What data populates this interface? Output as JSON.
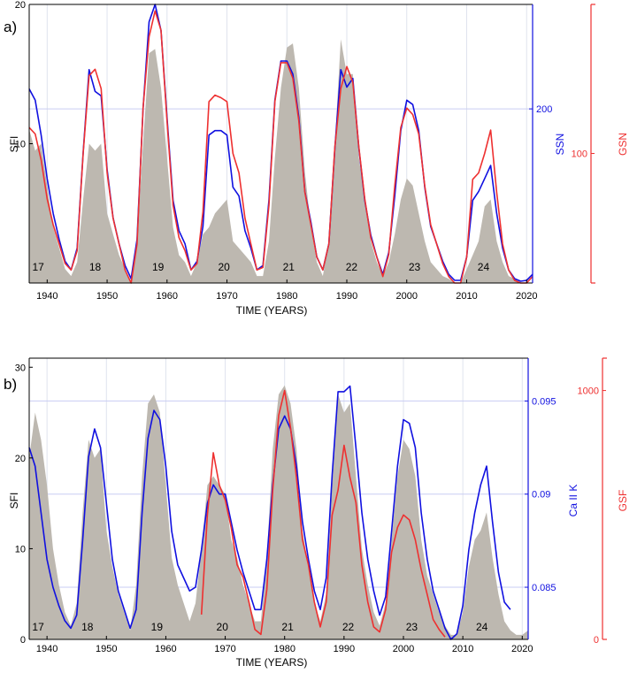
{
  "chart_data": [
    {
      "panel": "a)",
      "type": "line",
      "xlabel": "TIME (YEARS)",
      "ylabel": "SFI",
      "y2label": "SSN",
      "y3label": "GSN",
      "xlim": [
        1937,
        2021
      ],
      "ylim": [
        0,
        20
      ],
      "y2lim": [
        0,
        320
      ],
      "y3lim": [
        0,
        215
      ],
      "xticks": [
        "1940",
        "1950",
        "1960",
        "1970",
        "1980",
        "1990",
        "2000",
        "2010",
        "2020"
      ],
      "yticks": [
        "10",
        "20"
      ],
      "y2ticks": [
        "200"
      ],
      "y3ticks": [
        "100"
      ],
      "grid": true,
      "colors": {
        "SFI": "#bdb8b0",
        "SSN": "#1010e0",
        "GSN": "#ee3030"
      },
      "cycle_labels": [
        {
          "label": "17",
          "x": 1938.5
        },
        {
          "label": "18",
          "x": 1948
        },
        {
          "label": "19",
          "x": 1958.5
        },
        {
          "label": "20",
          "x": 1969.5
        },
        {
          "label": "21",
          "x": 1980.3
        },
        {
          "label": "22",
          "x": 1990.8
        },
        {
          "label": "23",
          "x": 2001.3
        },
        {
          "label": "24",
          "x": 2012.8
        }
      ],
      "series": [
        {
          "series_key": "SFI",
          "kind": "area",
          "x": [
            1937,
            1938,
            1939,
            1940,
            1941,
            1942,
            1943,
            1944,
            1945,
            1946,
            1947,
            1948,
            1949,
            1950,
            1951,
            1952,
            1953,
            1954,
            1955,
            1956,
            1957,
            1958,
            1959,
            1960,
            1961,
            1962,
            1963,
            1964,
            1965,
            1966,
            1967,
            1968,
            1969,
            1970,
            1971,
            1972,
            1973,
            1974,
            1975,
            1976,
            1977,
            1978,
            1979,
            1980,
            1981,
            1982,
            1983,
            1984,
            1985,
            1986,
            1987,
            1988,
            1989,
            1990,
            1991,
            1992,
            1993,
            1994,
            1995,
            1996,
            1997,
            1998,
            1999,
            2000,
            2001,
            2002,
            2003,
            2004,
            2005,
            2006,
            2007,
            2008,
            2009,
            2010,
            2011,
            2012,
            2013,
            2014,
            2015,
            2016,
            2017,
            2018,
            2019,
            2020,
            2021
          ],
          "values": [
            11,
            9.5,
            10,
            7,
            4,
            2.5,
            1,
            0.5,
            1.5,
            6,
            10,
            9.5,
            10,
            5,
            3.5,
            2,
            1,
            0,
            3,
            10,
            16.5,
            16.8,
            14,
            9,
            4,
            2,
            1.5,
            0.5,
            1.5,
            3.5,
            4,
            5,
            5.5,
            6,
            3,
            2.5,
            2,
            1.5,
            0.5,
            0.5,
            3,
            9,
            14,
            16.9,
            17.2,
            14,
            8,
            4,
            1.5,
            0.5,
            3,
            10,
            17.5,
            15,
            15,
            9,
            6,
            3,
            1.5,
            0.5,
            1.5,
            3.5,
            6,
            7.5,
            7,
            5,
            3,
            1.5,
            1,
            0.5,
            0.3,
            0,
            0,
            1,
            2,
            3,
            5.5,
            6,
            3,
            1.5,
            0.5,
            0.3,
            0,
            0,
            0
          ]
        },
        {
          "name": "SSN",
          "series_key": "SSN",
          "kind": "line",
          "x": [
            1937,
            1938,
            1939,
            1940,
            1941,
            1942,
            1943,
            1944,
            1945,
            1946,
            1947,
            1948,
            1949,
            1950,
            1951,
            1952,
            1953,
            1954,
            1955,
            1956,
            1957,
            1958,
            1959,
            1960,
            1961,
            1962,
            1963,
            1964,
            1965,
            1966,
            1967,
            1968,
            1969,
            1970,
            1971,
            1972,
            1973,
            1974,
            1975,
            1976,
            1977,
            1978,
            1979,
            1980,
            1981,
            1982,
            1983,
            1984,
            1985,
            1986,
            1987,
            1988,
            1989,
            1990,
            1991,
            1992,
            1993,
            1994,
            1995,
            1996,
            1997,
            1998,
            1999,
            2000,
            2001,
            2002,
            2003,
            2004,
            2005,
            2006,
            2007,
            2008,
            2009,
            2010,
            2011,
            2012,
            2013,
            2014,
            2015,
            2016,
            2017,
            2018,
            2019,
            2020,
            2021
          ],
          "values": [
            223,
            210,
            170,
            120,
            80,
            50,
            25,
            15,
            40,
            150,
            245,
            220,
            215,
            130,
            75,
            45,
            20,
            5,
            50,
            200,
            300,
            320,
            290,
            190,
            95,
            60,
            45,
            15,
            25,
            65,
            170,
            175,
            175,
            170,
            110,
            100,
            60,
            40,
            15,
            20,
            95,
            210,
            255,
            255,
            240,
            190,
            105,
            70,
            30,
            15,
            45,
            155,
            245,
            225,
            235,
            155,
            95,
            55,
            30,
            10,
            35,
            100,
            175,
            210,
            205,
            175,
            110,
            65,
            45,
            25,
            10,
            3,
            3,
            30,
            95,
            105,
            120,
            135,
            80,
            40,
            15,
            5,
            2,
            3,
            10
          ]
        },
        {
          "name": "GSN",
          "series_key": "GSN",
          "kind": "line",
          "x": [
            1937,
            1938,
            1939,
            1940,
            1941,
            1942,
            1943,
            1944,
            1945,
            1946,
            1947,
            1948,
            1949,
            1950,
            1951,
            1952,
            1953,
            1954,
            1955,
            1956,
            1957,
            1958,
            1959,
            1960,
            1961,
            1962,
            1963,
            1964,
            1965,
            1966,
            1967,
            1968,
            1969,
            1970,
            1971,
            1972,
            1973,
            1974,
            1975,
            1976,
            1977,
            1978,
            1979,
            1980,
            1981,
            1982,
            1983,
            1984,
            1985,
            1986,
            1987,
            1988,
            1989,
            1990,
            1991,
            1992,
            1993,
            1994,
            1995,
            1996,
            1997,
            1998,
            1999,
            2000,
            2001,
            2002,
            2003,
            2004,
            2005,
            2006,
            2007,
            2008,
            2009,
            2010,
            2011,
            2012,
            2013,
            2014,
            2015,
            2016,
            2017,
            2018,
            2019,
            2020,
            2021
          ],
          "values": [
            120,
            115,
            95,
            65,
            45,
            30,
            15,
            10,
            25,
            100,
            160,
            165,
            150,
            85,
            50,
            30,
            10,
            0,
            30,
            135,
            190,
            210,
            195,
            125,
            60,
            35,
            25,
            10,
            15,
            55,
            140,
            145,
            143,
            140,
            100,
            85,
            50,
            30,
            10,
            12,
            60,
            140,
            170,
            170,
            158,
            125,
            70,
            45,
            20,
            10,
            30,
            105,
            150,
            167,
            155,
            105,
            65,
            35,
            20,
            5,
            22,
            75,
            120,
            135,
            130,
            115,
            75,
            45,
            30,
            15,
            5,
            0,
            0,
            20,
            80,
            85,
            100,
            118,
            70,
            30,
            10,
            2,
            0,
            0,
            5
          ]
        }
      ]
    },
    {
      "panel": "b)",
      "type": "line",
      "xlabel": "TIME (YEARS)",
      "ylabel": "SFI",
      "y2label": "Ca II K",
      "y3label": "GSF",
      "xlim": [
        1937,
        2021
      ],
      "ylim": [
        0,
        31
      ],
      "y2lim": [
        0.0822,
        0.0973
      ],
      "y3lim": [
        0,
        1130
      ],
      "xticks": [
        "1940",
        "1950",
        "1960",
        "1970",
        "1980",
        "1990",
        "2000",
        "2010",
        "2020"
      ],
      "yticks": [
        "0",
        "10",
        "20",
        "30"
      ],
      "y2ticks": [
        "0.085",
        "0.09",
        "0.095"
      ],
      "y3ticks": [
        "0",
        "1000"
      ],
      "grid": true,
      "colors": {
        "SFI": "#bdb8b0",
        "CaIIK": "#1010e0",
        "GSF": "#ee3030"
      },
      "cycle_labels": [
        {
          "label": "17",
          "x": 1938.5
        },
        {
          "label": "18",
          "x": 1946.8
        },
        {
          "label": "19",
          "x": 1958.5
        },
        {
          "label": "20",
          "x": 1969.5
        },
        {
          "label": "21",
          "x": 1980.5
        },
        {
          "label": "22",
          "x": 1990.7
        },
        {
          "label": "23",
          "x": 2001.4
        },
        {
          "label": "24",
          "x": 2013.2
        }
      ],
      "series": [
        {
          "series_key": "SFI",
          "kind": "area",
          "x": [
            1937,
            1938,
            1939,
            1940,
            1941,
            1942,
            1943,
            1944,
            1945,
            1946,
            1947,
            1948,
            1949,
            1950,
            1951,
            1952,
            1953,
            1954,
            1955,
            1956,
            1957,
            1958,
            1959,
            1960,
            1961,
            1962,
            1963,
            1964,
            1965,
            1966,
            1967,
            1968,
            1969,
            1970,
            1971,
            1972,
            1973,
            1974,
            1975,
            1976,
            1977,
            1978,
            1979,
            1980,
            1981,
            1982,
            1983,
            1984,
            1985,
            1986,
            1987,
            1988,
            1989,
            1990,
            1991,
            1992,
            1993,
            1994,
            1995,
            1996,
            1997,
            1998,
            1999,
            2000,
            2001,
            2002,
            2003,
            2004,
            2005,
            2006,
            2007,
            2008,
            2009,
            2010,
            2011,
            2012,
            2013,
            2014,
            2015,
            2016,
            2017,
            2018,
            2019,
            2020,
            2021
          ],
          "values": [
            20,
            25,
            22,
            17,
            10,
            6,
            3,
            1.5,
            4,
            14,
            22,
            20,
            21,
            12,
            8,
            5,
            3,
            1,
            6,
            18,
            26,
            27,
            25,
            17,
            9,
            6,
            4,
            2,
            4,
            10,
            17,
            18,
            17,
            16,
            11,
            9,
            6,
            4,
            2,
            2,
            9,
            21,
            27,
            28,
            26,
            21,
            12,
            8,
            4,
            2,
            5,
            17,
            27,
            25,
            26,
            18,
            10,
            6,
            3,
            1.5,
            4,
            11,
            18,
            22,
            21,
            18,
            11,
            7,
            5,
            3,
            1.5,
            0.5,
            0.5,
            3,
            8,
            11,
            12,
            14,
            9,
            5,
            2,
            1,
            0.5,
            0.5,
            1
          ]
        },
        {
          "name": "Ca II K",
          "series_key": "CaIIK",
          "kind": "line",
          "x": [
            1937,
            1938,
            1939,
            1940,
            1941,
            1942,
            1943,
            1944,
            1945,
            1946,
            1947,
            1948,
            1949,
            1950,
            1951,
            1952,
            1953,
            1954,
            1955,
            1956,
            1957,
            1958,
            1959,
            1960,
            1961,
            1962,
            1963,
            1964,
            1965,
            1966,
            1967,
            1968,
            1969,
            1970,
            1971,
            1972,
            1973,
            1974,
            1975,
            1976,
            1977,
            1978,
            1979,
            1980,
            1981,
            1982,
            1983,
            1984,
            1985,
            1986,
            1987,
            1988,
            1989,
            1990,
            1991,
            1992,
            1993,
            1994,
            1995,
            1996,
            1997,
            1998,
            1999,
            2000,
            2001,
            2002,
            2003,
            2004,
            2005,
            2006,
            2007,
            2008,
            2009,
            2010,
            2011,
            2012,
            2013,
            2014,
            2015,
            2016,
            2017,
            2018
          ],
          "values": [
            0.0925,
            0.0915,
            0.089,
            0.0865,
            0.085,
            0.084,
            0.0832,
            0.0828,
            0.0835,
            0.0875,
            0.092,
            0.0935,
            0.0925,
            0.0895,
            0.0865,
            0.0848,
            0.0838,
            0.0828,
            0.0838,
            0.089,
            0.093,
            0.0945,
            0.094,
            0.0915,
            0.088,
            0.0862,
            0.0855,
            0.0848,
            0.085,
            0.087,
            0.0895,
            0.0905,
            0.09,
            0.09,
            0.0885,
            0.087,
            0.0858,
            0.0848,
            0.0838,
            0.0838,
            0.0865,
            0.0905,
            0.0935,
            0.0942,
            0.0935,
            0.0915,
            0.0885,
            0.0865,
            0.0848,
            0.0838,
            0.0855,
            0.091,
            0.0955,
            0.0955,
            0.0958,
            0.0925,
            0.089,
            0.0865,
            0.0848,
            0.0835,
            0.0845,
            0.088,
            0.0915,
            0.094,
            0.0938,
            0.0925,
            0.089,
            0.0865,
            0.0848,
            0.0838,
            0.0828,
            0.0822,
            0.0825,
            0.084,
            0.087,
            0.089,
            0.0905,
            0.0915,
            0.0885,
            0.0858,
            0.0842,
            0.0838
          ]
        },
        {
          "name": "GSF",
          "series_key": "GSF",
          "kind": "line",
          "x": [
            1966,
            1967,
            1968,
            1969,
            1970,
            1971,
            1972,
            1973,
            1974,
            1975,
            1976,
            1977,
            1978,
            1979,
            1980,
            1981,
            1982,
            1983,
            1984,
            1985,
            1986,
            1987,
            1988,
            1989,
            1990,
            1991,
            1992,
            1993,
            1994,
            1995,
            1996,
            1997,
            1998,
            1999,
            2000,
            2001,
            2002,
            2003,
            2004,
            2005,
            2006,
            2007
          ],
          "values": [
            100,
            500,
            750,
            620,
            560,
            450,
            300,
            250,
            150,
            40,
            20,
            200,
            600,
            900,
            1000,
            850,
            650,
            400,
            300,
            150,
            50,
            150,
            500,
            600,
            780,
            650,
            550,
            300,
            150,
            50,
            30,
            120,
            350,
            450,
            500,
            480,
            400,
            280,
            180,
            80,
            40,
            10
          ]
        }
      ]
    }
  ]
}
